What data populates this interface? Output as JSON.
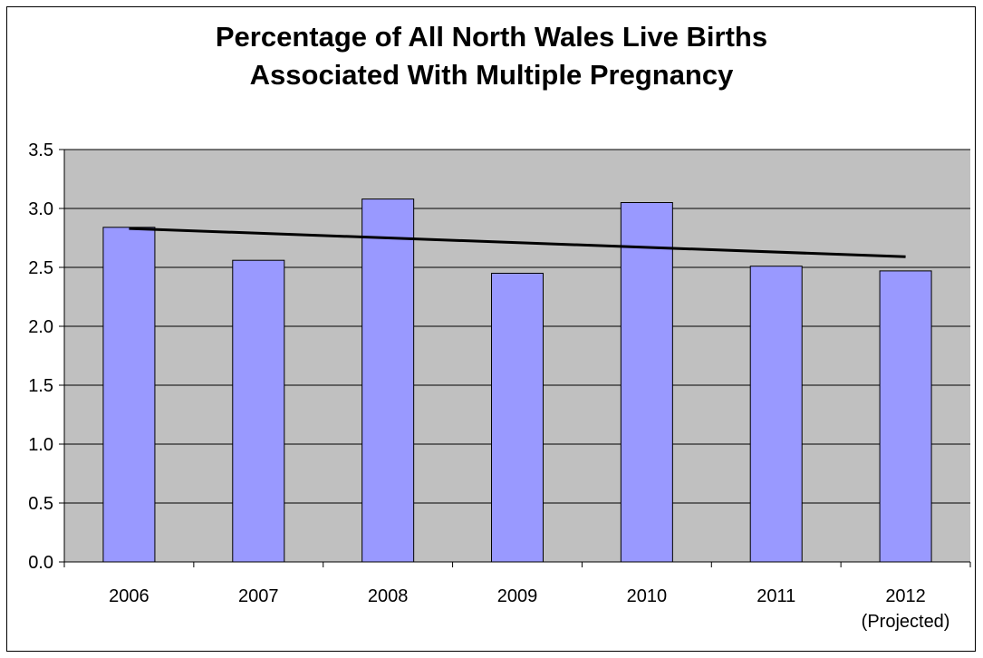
{
  "chart_data": {
    "type": "bar",
    "title_lines": [
      "Percentage of All North Wales Live Births",
      "Associated With Multiple Pregnancy"
    ],
    "xlabel": "",
    "ylabel": "",
    "categories": [
      "2006",
      "2007",
      "2008",
      "2009",
      "2010",
      "2011",
      "2012"
    ],
    "category_sublabels": [
      "",
      "",
      "",
      "",
      "",
      "",
      "(Projected)"
    ],
    "values": [
      2.84,
      2.56,
      3.08,
      2.45,
      3.05,
      2.51,
      2.47
    ],
    "trendline": {
      "type": "linear",
      "start": 2.83,
      "end": 2.59
    },
    "ylim": [
      0,
      3.5
    ],
    "yticks": [
      "0.0",
      "0.5",
      "1.0",
      "1.5",
      "2.0",
      "2.5",
      "3.0",
      "3.5"
    ],
    "grid": true,
    "legend": "none",
    "colors": {
      "bar_fill": "#9999FF",
      "bar_stroke": "#000000",
      "plot_bg": "#C0C0C0",
      "trend": "#000000"
    }
  }
}
